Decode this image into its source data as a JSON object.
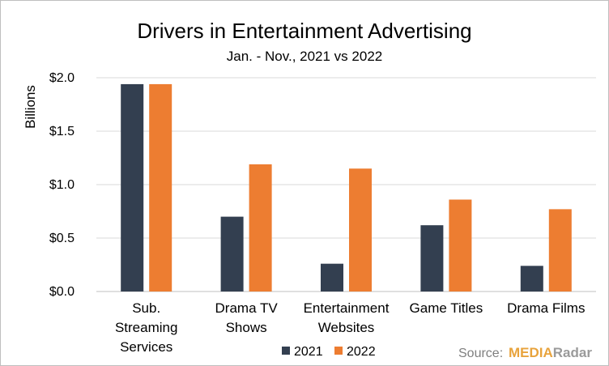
{
  "chart_data": {
    "type": "bar",
    "title": "Drivers in Entertainment Advertising",
    "subtitle": "Jan. - Nov., 2021 vs 2022",
    "ylabel": "Billions",
    "ylim": [
      0,
      2.0
    ],
    "yticks": [
      "$0.0",
      "$0.5",
      "$1.0",
      "$1.5",
      "$2.0"
    ],
    "ytick_values": [
      0,
      0.5,
      1.0,
      1.5,
      2.0
    ],
    "grid": true,
    "legend_position": "bottom",
    "categories": [
      [
        "Sub.",
        "Streaming",
        "Services"
      ],
      [
        "Drama TV",
        "Shows"
      ],
      [
        "Entertainment",
        "Websites"
      ],
      [
        "Game Titles"
      ],
      [
        "Drama Films"
      ]
    ],
    "series": [
      {
        "name": "2021",
        "color": "#333f50",
        "values": [
          1.94,
          0.7,
          0.26,
          0.62,
          0.24
        ]
      },
      {
        "name": "2022",
        "color": "#ed7d31",
        "values": [
          1.94,
          1.19,
          1.15,
          0.86,
          0.77
        ]
      }
    ]
  },
  "source": {
    "label": "Source:",
    "brand_part1": "MEDIA",
    "brand_part2": "Radar"
  }
}
